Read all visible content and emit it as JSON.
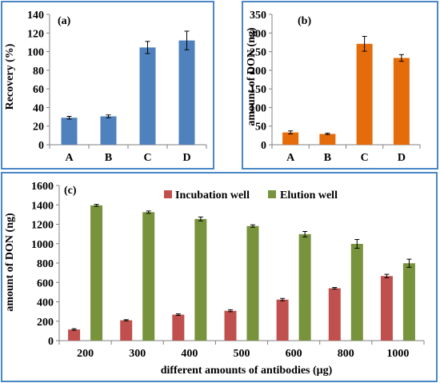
{
  "colors": {
    "panel_border": "#4a86c5",
    "blue": "#4f81bd",
    "orange": "#e46c0a",
    "red": "#c0504d",
    "green": "#77933c",
    "axis": "#808080",
    "error_bar": "#000000"
  },
  "chart_data": [
    {
      "panel": "(a)",
      "type": "bar",
      "ylabel": "Recovery (%)",
      "categories": [
        "A",
        "B",
        "C",
        "D"
      ],
      "values": [
        29,
        30.5,
        104.5,
        112
      ],
      "errors": [
        1.5,
        1.5,
        6.5,
        10
      ],
      "ylim": [
        0,
        140
      ],
      "yticks": [
        0,
        20,
        40,
        60,
        80,
        100,
        120,
        140
      ],
      "grid": false
    },
    {
      "panel": "(b)",
      "type": "bar",
      "ylabel": "amount of DON (ng)",
      "categories": [
        "A",
        "B",
        "C",
        "D"
      ],
      "values": [
        33,
        29,
        271,
        233
      ],
      "errors": [
        4,
        2,
        20,
        9
      ],
      "ylim": [
        0,
        350
      ],
      "yticks": [
        0,
        50,
        100,
        150,
        200,
        250,
        300,
        350
      ],
      "grid": false
    },
    {
      "panel": "(c)",
      "type": "bar",
      "xlabel": "different amounts of antibodies (μg)",
      "ylabel": "amount of DON (ng)",
      "categories": [
        "200",
        "300",
        "400",
        "500",
        "600",
        "800",
        "1000"
      ],
      "series": [
        {
          "name": "Incubation well",
          "values": [
            115,
            210,
            268,
            308,
            423,
            540,
            666
          ],
          "errors": [
            8,
            6,
            8,
            10,
            12,
            8,
            18
          ]
        },
        {
          "name": "Elution well",
          "values": [
            1395,
            1325,
            1255,
            1182,
            1098,
            998,
            798
          ],
          "errors": [
            10,
            12,
            20,
            12,
            28,
            45,
            42
          ]
        }
      ],
      "ylim": [
        0,
        1600
      ],
      "yticks": [
        0,
        200,
        400,
        600,
        800,
        1000,
        1200,
        1400,
        1600
      ],
      "legend_position": "top",
      "grid": false
    }
  ]
}
